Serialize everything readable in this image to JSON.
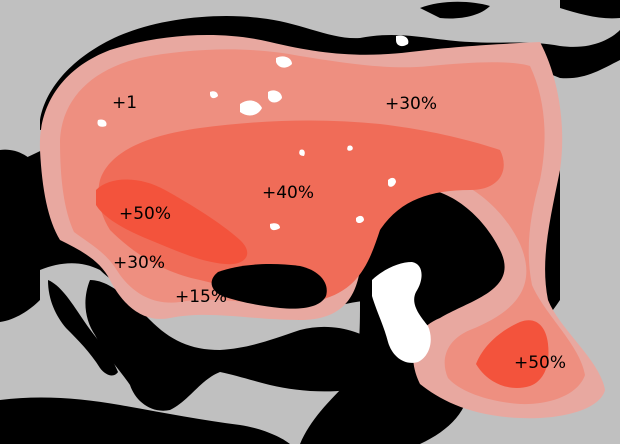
{
  "map": {
    "colors": {
      "background": "#c0c0c0",
      "land": "#000000",
      "water_inland": "#ffffff",
      "zone_15": "#e8a8a0",
      "zone_30": "#ee8f80",
      "zone_40": "#f06c58",
      "zone_50": "#f3533c"
    },
    "labels": [
      {
        "id": "scandinavia",
        "text": "+1"
      },
      {
        "id": "north",
        "text": "+30%"
      },
      {
        "id": "central",
        "text": "+40%"
      },
      {
        "id": "west",
        "text": "+50%"
      },
      {
        "id": "balkans",
        "text": "+30%"
      },
      {
        "id": "anatolia",
        "text": "+15%"
      },
      {
        "id": "east",
        "text": "+50%"
      }
    ]
  }
}
